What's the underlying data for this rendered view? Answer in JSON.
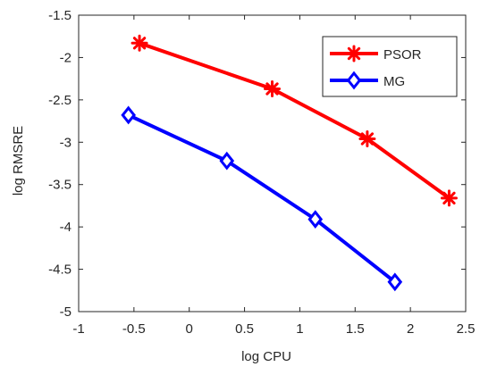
{
  "chart_data": {
    "type": "line",
    "title": "",
    "xlabel": "log CPU",
    "ylabel": "log RMSRE",
    "xlim": [
      -1,
      2.5
    ],
    "ylim": [
      -5,
      -1.5
    ],
    "xticks": [
      -1,
      -0.5,
      0,
      0.5,
      1,
      1.5,
      2,
      2.5
    ],
    "xtick_labels": [
      "-1",
      "-0.5",
      "0",
      "0.5",
      "1",
      "1.5",
      "2",
      "2.5"
    ],
    "yticks": [
      -5,
      -4.5,
      -4,
      -3.5,
      -3,
      -2.5,
      -2,
      -1.5
    ],
    "ytick_labels": [
      "-5",
      "-4.5",
      "-4",
      "-3.5",
      "-3",
      "-2.5",
      "-2",
      "-1.5"
    ],
    "grid": false,
    "legend_position": "top-right",
    "series": [
      {
        "name": "PSOR",
        "color": "#ff0000",
        "marker": "asterisk",
        "x": [
          -0.45,
          0.75,
          1.61,
          2.35
        ],
        "y": [
          -1.83,
          -2.37,
          -2.96,
          -3.66
        ]
      },
      {
        "name": "MG",
        "color": "#0000ff",
        "marker": "diamond",
        "x": [
          -0.55,
          0.34,
          1.14,
          1.86
        ],
        "y": [
          -2.68,
          -3.22,
          -3.91,
          -4.65
        ]
      }
    ]
  }
}
